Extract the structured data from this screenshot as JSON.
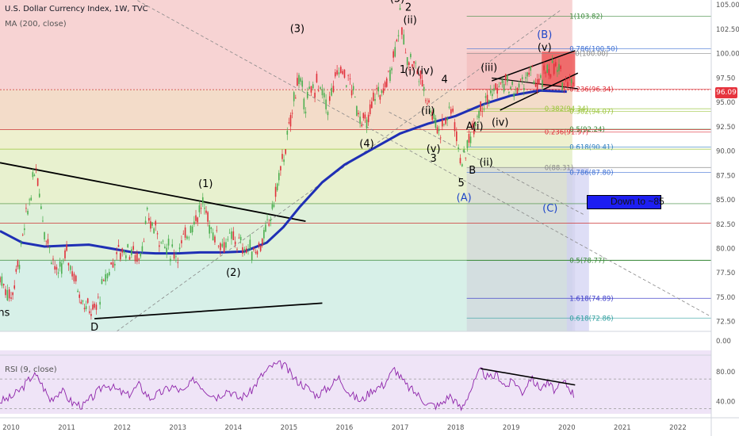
{
  "header": {
    "title": "U.S. Dollar Currency Index, 1W, TVC",
    "ma_label": "MA (200, close)",
    "rsi_label": "RSI (9, close)"
  },
  "price_tag": "96.09",
  "annotation_box": {
    "text": "Down to ~85"
  },
  "colors": {
    "ma_line": "#1f2fb5",
    "candle_up": "#4caf50",
    "candle_down": "#e0303a",
    "rsi_line": "#8e24aa",
    "trendline": "#000000",
    "label_blue": "#1f46c9"
  },
  "chart_data": {
    "type": "candlestick",
    "title": "U.S. Dollar Currency Index, 1W, TVC",
    "x_ticks": [
      "2010",
      "2011",
      "2012",
      "2013",
      "2014",
      "2015",
      "2016",
      "2017",
      "2018",
      "2019",
      "2020",
      "2021",
      "2022"
    ],
    "y_ticks": [
      "105.00",
      "102.50",
      "100.00",
      "97.50",
      "95.00",
      "92.50",
      "90.00",
      "87.50",
      "85.00",
      "82.50",
      "80.00",
      "77.50",
      "75.00",
      "72.50"
    ],
    "ylim": [
      71.5,
      105.5
    ],
    "xlim": [
      2009.8,
      2022.6
    ],
    "rsi_ticks": [
      "80.00",
      "40.00"
    ],
    "extra_axis_tick": "0.00",
    "price_path": [
      [
        2009.8,
        77
      ],
      [
        2010.0,
        75
      ],
      [
        2010.15,
        79
      ],
      [
        2010.3,
        84
      ],
      [
        2010.45,
        88.5
      ],
      [
        2010.6,
        82
      ],
      [
        2010.85,
        77
      ],
      [
        2011.0,
        79.5
      ],
      [
        2011.2,
        76
      ],
      [
        2011.35,
        74
      ],
      [
        2011.5,
        73.5
      ],
      [
        2011.7,
        77
      ],
      [
        2011.9,
        79.5
      ],
      [
        2012.1,
        80
      ],
      [
        2012.3,
        79
      ],
      [
        2012.45,
        83
      ],
      [
        2012.6,
        82
      ],
      [
        2012.8,
        80
      ],
      [
        2013.0,
        79.5
      ],
      [
        2013.2,
        82
      ],
      [
        2013.45,
        84.5
      ],
      [
        2013.6,
        82
      ],
      [
        2013.8,
        80.5
      ],
      [
        2014.0,
        81
      ],
      [
        2014.2,
        80
      ],
      [
        2014.4,
        79.8
      ],
      [
        2014.55,
        81
      ],
      [
        2014.7,
        84
      ],
      [
        2014.85,
        88
      ],
      [
        2015.0,
        92
      ],
      [
        2015.15,
        97.5
      ],
      [
        2015.3,
        95
      ],
      [
        2015.5,
        97
      ],
      [
        2015.7,
        94.5
      ],
      [
        2015.9,
        98.5
      ],
      [
        2016.1,
        97
      ],
      [
        2016.25,
        94
      ],
      [
        2016.4,
        92.5
      ],
      [
        2016.55,
        96
      ],
      [
        2016.7,
        96
      ],
      [
        2016.85,
        99
      ],
      [
        2017.0,
        103.5
      ],
      [
        2017.1,
        100
      ],
      [
        2017.25,
        99
      ],
      [
        2017.4,
        97
      ],
      [
        2017.55,
        94.5
      ],
      [
        2017.7,
        92
      ],
      [
        2017.85,
        93.5
      ],
      [
        2017.95,
        94.5
      ],
      [
        2018.05,
        90
      ],
      [
        2018.15,
        89
      ],
      [
        2018.3,
        92.5
      ],
      [
        2018.45,
        94.8
      ],
      [
        2018.6,
        95.5
      ],
      [
        2018.75,
        96.5
      ],
      [
        2018.9,
        97
      ],
      [
        2019.05,
        96
      ],
      [
        2019.2,
        97
      ],
      [
        2019.35,
        98
      ],
      [
        2019.5,
        96.5
      ],
      [
        2019.65,
        98.5
      ],
      [
        2019.8,
        98.5
      ],
      [
        2019.95,
        97
      ],
      [
        2020.05,
        98
      ],
      [
        2020.15,
        96.1
      ]
    ],
    "ma200_path": [
      [
        2009.8,
        81.8
      ],
      [
        2010.2,
        80.6
      ],
      [
        2010.6,
        80.2
      ],
      [
        2011.0,
        80.3
      ],
      [
        2011.4,
        80.4
      ],
      [
        2011.8,
        80.0
      ],
      [
        2012.2,
        79.6
      ],
      [
        2012.6,
        79.5
      ],
      [
        2013.0,
        79.5
      ],
      [
        2013.4,
        79.6
      ],
      [
        2013.8,
        79.6
      ],
      [
        2014.2,
        79.7
      ],
      [
        2014.6,
        80.6
      ],
      [
        2014.9,
        82.2
      ],
      [
        2015.2,
        84.3
      ],
      [
        2015.6,
        86.8
      ],
      [
        2016.0,
        88.6
      ],
      [
        2016.5,
        90.2
      ],
      [
        2017.0,
        91.8
      ],
      [
        2017.5,
        92.8
      ],
      [
        2018.0,
        93.6
      ],
      [
        2018.5,
        94.8
      ],
      [
        2019.0,
        95.7
      ],
      [
        2019.5,
        96.2
      ],
      [
        2020.0,
        96.1
      ]
    ],
    "rsi_path": [
      [
        2009.8,
        40
      ],
      [
        2010.0,
        45
      ],
      [
        2010.2,
        58
      ],
      [
        2010.4,
        76
      ],
      [
        2010.5,
        70
      ],
      [
        2010.7,
        42
      ],
      [
        2010.9,
        55
      ],
      [
        2011.1,
        38
      ],
      [
        2011.3,
        34
      ],
      [
        2011.5,
        48
      ],
      [
        2011.7,
        64
      ],
      [
        2011.9,
        55
      ],
      [
        2012.1,
        48
      ],
      [
        2012.3,
        62
      ],
      [
        2012.5,
        44
      ],
      [
        2012.7,
        52
      ],
      [
        2012.9,
        60
      ],
      [
        2013.1,
        52
      ],
      [
        2013.3,
        70
      ],
      [
        2013.5,
        55
      ],
      [
        2013.7,
        46
      ],
      [
        2013.9,
        56
      ],
      [
        2014.1,
        44
      ],
      [
        2014.3,
        52
      ],
      [
        2014.5,
        74
      ],
      [
        2014.7,
        88
      ],
      [
        2014.9,
        90
      ],
      [
        2015.1,
        70
      ],
      [
        2015.3,
        60
      ],
      [
        2015.5,
        48
      ],
      [
        2015.7,
        58
      ],
      [
        2015.9,
        72
      ],
      [
        2016.1,
        50
      ],
      [
        2016.3,
        40
      ],
      [
        2016.5,
        56
      ],
      [
        2016.7,
        62
      ],
      [
        2016.9,
        84
      ],
      [
        2017.1,
        62
      ],
      [
        2017.3,
        50
      ],
      [
        2017.5,
        36
      ],
      [
        2017.7,
        34
      ],
      [
        2017.9,
        48
      ],
      [
        2018.1,
        30
      ],
      [
        2018.3,
        60
      ],
      [
        2018.45,
        82
      ],
      [
        2018.6,
        70
      ],
      [
        2018.75,
        76
      ],
      [
        2018.9,
        60
      ],
      [
        2019.05,
        68
      ],
      [
        2019.2,
        52
      ],
      [
        2019.35,
        72
      ],
      [
        2019.5,
        58
      ],
      [
        2019.65,
        64
      ],
      [
        2019.8,
        54
      ],
      [
        2019.95,
        66
      ],
      [
        2020.05,
        58
      ],
      [
        2020.15,
        46
      ]
    ],
    "fib_labels": [
      {
        "text": "1(103.82)",
        "value": 103.82,
        "x": 2020.05,
        "color": "#3b8a3b"
      },
      {
        "text": "0.786(100.50)",
        "value": 100.5,
        "x": 2020.05,
        "color": "#3d6fd4"
      },
      {
        "text": "0(100.00)",
        "value": 100.0,
        "x": 2020.15,
        "color": "#888888"
      },
      {
        "text": "0.236(96.34)",
        "value": 96.34,
        "x": 2020.05,
        "color": "#e0303a"
      },
      {
        "text": "0.382(94.34)",
        "value": 94.34,
        "x": 2019.6,
        "color": "#9bc53d"
      },
      {
        "text": "0.382(94.07)",
        "value": 94.07,
        "x": 2020.05,
        "color": "#9bc53d"
      },
      {
        "text": "0.236(91.97)",
        "value": 91.97,
        "x": 2019.6,
        "color": "#e0303a"
      },
      {
        "text": "0.5(92.24)",
        "value": 92.24,
        "x": 2020.05,
        "color": "#3b8a3b"
      },
      {
        "text": "0.618(90.41)",
        "value": 90.41,
        "x": 2020.05,
        "color": "#2f7fbf"
      },
      {
        "text": "0(88.31)",
        "value": 88.31,
        "x": 2019.6,
        "color": "#888888"
      },
      {
        "text": "0.786(87.80)",
        "value": 87.8,
        "x": 2020.05,
        "color": "#3d6fd4"
      },
      {
        "text": "0.5(78.77)",
        "value": 78.77,
        "x": 2020.05,
        "color": "#3b8a3b"
      },
      {
        "text": "1.618(74.89)",
        "value": 74.89,
        "x": 2020.05,
        "color": "#3d3dc9"
      },
      {
        "text": "0.618(72.86)",
        "value": 72.86,
        "x": 2020.05,
        "color": "#2f9f9f"
      }
    ],
    "wave_labels": [
      {
        "text": "(5)",
        "x": 2016.95,
        "y": 105.3,
        "color": "#000000"
      },
      {
        "text": "2",
        "x": 2017.15,
        "y": 104.4,
        "color": "#000000"
      },
      {
        "text": "(ii)",
        "x": 2017.18,
        "y": 103.1,
        "color": "#000000"
      },
      {
        "text": "(3)",
        "x": 2015.15,
        "y": 102.2,
        "color": "#000000"
      },
      {
        "text": "1",
        "x": 2017.05,
        "y": 98.0,
        "color": "#000000"
      },
      {
        "text": "(i)",
        "x": 2017.18,
        "y": 97.8,
        "color": "#000000"
      },
      {
        "text": "(iv)",
        "x": 2017.45,
        "y": 97.9,
        "color": "#000000"
      },
      {
        "text": "4",
        "x": 2017.8,
        "y": 97.0,
        "color": "#000000"
      },
      {
        "text": "(iii)",
        "x": 2018.6,
        "y": 98.2,
        "color": "#000000"
      },
      {
        "text": "(ii)",
        "x": 2017.5,
        "y": 93.8,
        "color": "#000000"
      },
      {
        "text": "A",
        "x": 2018.25,
        "y": 92.2,
        "color": "#000000"
      },
      {
        "text": "(i)",
        "x": 2018.4,
        "y": 92.2,
        "color": "#000000"
      },
      {
        "text": "(iv)",
        "x": 2018.8,
        "y": 92.6,
        "color": "#000000"
      },
      {
        "text": "(v)",
        "x": 2017.6,
        "y": 89.9,
        "color": "#000000"
      },
      {
        "text": "3",
        "x": 2017.6,
        "y": 88.9,
        "color": "#000000"
      },
      {
        "text": "(ii)",
        "x": 2018.55,
        "y": 88.5,
        "color": "#000000"
      },
      {
        "text": "B",
        "x": 2018.3,
        "y": 87.7,
        "color": "#000000"
      },
      {
        "text": "5",
        "x": 2018.1,
        "y": 86.4,
        "color": "#000000"
      },
      {
        "text": "(A)",
        "x": 2018.15,
        "y": 84.9,
        "color": "#1f46c9"
      },
      {
        "text": "(4)",
        "x": 2016.4,
        "y": 90.4,
        "color": "#000000"
      },
      {
        "text": "(1)",
        "x": 2013.5,
        "y": 86.3,
        "color": "#000000"
      },
      {
        "text": "(2)",
        "x": 2014.0,
        "y": 77.2,
        "color": "#000000"
      },
      {
        "text": "(B)",
        "x": 2019.6,
        "y": 101.6,
        "color": "#1f46c9"
      },
      {
        "text": "(v)",
        "x": 2019.6,
        "y": 100.3,
        "color": "#000000"
      },
      {
        "text": "(C)",
        "x": 2019.7,
        "y": 83.8,
        "color": "#1f46c9"
      },
      {
        "text": "D",
        "x": 2011.5,
        "y": 71.6,
        "color": "#000000"
      },
      {
        "text": "ns",
        "x": 2009.87,
        "y": 73.1,
        "color": "#000000"
      }
    ]
  }
}
